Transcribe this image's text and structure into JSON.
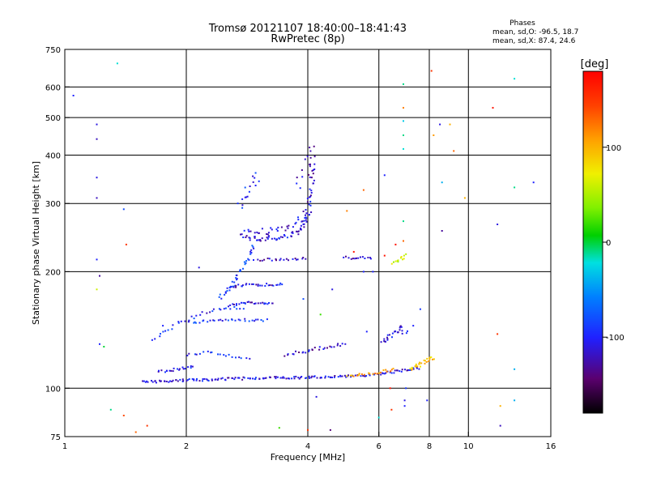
{
  "chart_data": {
    "type": "scatter",
    "title": "Tromsø 20121107 18:40:00–18:41:43",
    "subtitle": "RwPretec (8p)",
    "xlabel": "Frequency [MHz]",
    "ylabel": "Stationary phase Virtual Height [km]",
    "x_scale": "log",
    "y_scale": "log",
    "xlim": [
      1,
      16
    ],
    "ylim": [
      75,
      750
    ],
    "x_ticks": [
      1,
      2,
      4,
      6,
      8,
      10,
      16
    ],
    "x_ticklabels": [
      "1",
      "2",
      "4",
      "6",
      "8",
      "10",
      "16"
    ],
    "y_ticks": [
      75,
      100,
      200,
      300,
      400,
      500,
      600,
      750
    ],
    "y_ticklabels": [
      "75",
      "100",
      "200",
      "300",
      "400",
      "500",
      "600",
      "750"
    ],
    "gridlines_x": [
      2,
      4,
      6,
      8,
      10
    ],
    "gridlines_y": [
      100,
      200,
      300,
      400,
      500,
      600
    ],
    "grid": true,
    "stats": {
      "heading": "Phases",
      "line_o": "mean, sd,O: -96.5, 18.7",
      "line_x": "mean, sd,X:  87.4, 24.6"
    },
    "colorbar": {
      "label": "[deg]",
      "ticks": [
        "100",
        "0",
        "-100"
      ],
      "tick_values": [
        100,
        0,
        -100
      ],
      "range": [
        -180,
        180
      ]
    },
    "traces": [
      {
        "f": [
          1.55,
          1.7,
          1.9,
          2.1,
          2.4,
          2.8,
          3.2,
          3.6,
          4.0,
          4.5,
          5.0,
          5.5,
          6.0,
          6.4,
          6.8,
          7.2,
          7.6
        ],
        "h": [
          104,
          104,
          104.5,
          105,
          105.5,
          106,
          106.5,
          106.5,
          106.5,
          107,
          107.5,
          108,
          109,
          110,
          111,
          112,
          113
        ],
        "phase": -110,
        "n": 170,
        "jitter": 1.5
      },
      {
        "f": [
          5.0,
          5.5,
          6.0,
          6.3,
          6.6
        ],
        "h": [
          107.5,
          108.5,
          110,
          111,
          112
        ],
        "phase": 110,
        "n": 22,
        "jitter": 1.5
      },
      {
        "f": [
          7.2,
          7.5,
          7.8,
          8.2
        ],
        "h": [
          112,
          114,
          117,
          120
        ],
        "phase": 95,
        "n": 26,
        "jitter": 2.5
      },
      {
        "f": [
          1.7,
          1.9,
          2.1
        ],
        "h": [
          110,
          112,
          114
        ],
        "phase": -105,
        "n": 20,
        "jitter": 1.5
      },
      {
        "f": [
          2.0,
          2.3,
          2.6,
          2.9
        ],
        "h": [
          122,
          124,
          121,
          118
        ],
        "phase": -100,
        "n": 20,
        "jitter": 1.5
      },
      {
        "f": [
          3.5,
          4.0,
          4.5,
          5.0
        ],
        "h": [
          122,
          125,
          128,
          130
        ],
        "phase": -120,
        "n": 28,
        "jitter": 2
      },
      {
        "f": [
          6.1,
          6.4,
          6.8,
          7.0
        ],
        "h": [
          130,
          137,
          143,
          138
        ],
        "phase": -110,
        "n": 26,
        "jitter": 3
      },
      {
        "f": [
          1.65,
          1.8,
          2.0,
          2.2,
          2.5,
          2.8
        ],
        "h": [
          133,
          142,
          150,
          157,
          160,
          162
        ],
        "phase": -100,
        "n": 32,
        "jitter": 2
      },
      {
        "f": [
          2.0,
          2.3,
          2.6,
          2.9,
          3.2
        ],
        "h": [
          148,
          149,
          150,
          150,
          150
        ],
        "phase": -95,
        "n": 32,
        "jitter": 1.5
      },
      {
        "f": [
          2.55,
          2.7,
          2.85,
          3.0,
          3.3
        ],
        "h": [
          163,
          165,
          166,
          166,
          166
        ],
        "phase": -110,
        "n": 28,
        "jitter": 1.5
      },
      {
        "f": [
          2.4,
          2.6,
          2.8,
          2.95
        ],
        "h": [
          170,
          185,
          210,
          235
        ],
        "phase": -90,
        "n": 38,
        "jitter": 3
      },
      {
        "f": [
          2.55,
          2.8,
          3.0,
          3.2,
          3.5
        ],
        "h": [
          182,
          185,
          185,
          185,
          186
        ],
        "phase": -110,
        "n": 30,
        "jitter": 1.5
      },
      {
        "f": [
          2.95,
          3.2,
          3.5,
          3.8,
          4.0
        ],
        "h": [
          214,
          215,
          215,
          216,
          217
        ],
        "phase": -120,
        "n": 22,
        "jitter": 1.5
      },
      {
        "f": [
          2.75,
          2.9,
          3.1,
          3.4,
          3.7,
          3.9,
          4.05
        ],
        "h": [
          247,
          244,
          243,
          245,
          250,
          260,
          285
        ],
        "phase": -110,
        "n": 60,
        "jitter": 3
      },
      {
        "f": [
          2.8,
          3.0,
          3.3,
          3.6,
          3.9,
          4.05,
          4.1
        ],
        "h": [
          255,
          253,
          255,
          262,
          275,
          310,
          380
        ],
        "phase": -115,
        "n": 55,
        "jitter": 4
      },
      {
        "f": [
          2.75,
          2.85,
          3.0
        ],
        "h": [
          290,
          320,
          360
        ],
        "phase": -95,
        "n": 16,
        "jitter": 6
      },
      {
        "f": [
          3.8,
          3.95,
          4.05,
          4.1
        ],
        "h": [
          330,
          360,
          400,
          430
        ],
        "phase": -120,
        "n": 16,
        "jitter": 6
      },
      {
        "f": [
          4.9,
          5.1,
          5.4,
          5.8
        ],
        "h": [
          218,
          217,
          217,
          217
        ],
        "phase": -115,
        "n": 14,
        "jitter": 1.5
      },
      {
        "f": [
          6.5,
          6.8,
          7.0
        ],
        "h": [
          210,
          216,
          222
        ],
        "phase": 60,
        "n": 12,
        "jitter": 2
      }
    ],
    "scatter": [
      {
        "f": 1.05,
        "h": 570,
        "phase": -100
      },
      {
        "f": 1.2,
        "h": 480,
        "phase": -110
      },
      {
        "f": 1.2,
        "h": 440,
        "phase": -120
      },
      {
        "f": 1.2,
        "h": 350,
        "phase": -110
      },
      {
        "f": 1.2,
        "h": 310,
        "phase": -120
      },
      {
        "f": 1.2,
        "h": 215,
        "phase": -100
      },
      {
        "f": 1.22,
        "h": 195,
        "phase": -130
      },
      {
        "f": 1.2,
        "h": 180,
        "phase": 60
      },
      {
        "f": 1.22,
        "h": 130,
        "phase": -100
      },
      {
        "f": 1.25,
        "h": 128,
        "phase": 0
      },
      {
        "f": 1.35,
        "h": 690,
        "phase": -20
      },
      {
        "f": 1.4,
        "h": 290,
        "phase": -80
      },
      {
        "f": 1.42,
        "h": 235,
        "phase": 150
      },
      {
        "f": 1.3,
        "h": 88,
        "phase": -10
      },
      {
        "f": 1.4,
        "h": 85,
        "phase": 140
      },
      {
        "f": 1.5,
        "h": 77,
        "phase": 130
      },
      {
        "f": 1.6,
        "h": 80,
        "phase": 150
      },
      {
        "f": 2.15,
        "h": 205,
        "phase": -110
      },
      {
        "f": 3.4,
        "h": 79,
        "phase": 20
      },
      {
        "f": 4.0,
        "h": 78,
        "phase": 150
      },
      {
        "f": 4.55,
        "h": 78,
        "phase": -140
      },
      {
        "f": 4.2,
        "h": 95,
        "phase": -110
      },
      {
        "f": 5.2,
        "h": 225,
        "phase": 170
      },
      {
        "f": 5.5,
        "h": 200,
        "phase": -100
      },
      {
        "f": 5.8,
        "h": 200,
        "phase": -100
      },
      {
        "f": 6.0,
        "h": 84,
        "phase": -20
      },
      {
        "f": 6.2,
        "h": 355,
        "phase": -100
      },
      {
        "f": 6.2,
        "h": 220,
        "phase": 170
      },
      {
        "f": 6.45,
        "h": 88,
        "phase": 150
      },
      {
        "f": 6.4,
        "h": 100,
        "phase": 170
      },
      {
        "f": 6.9,
        "h": 530,
        "phase": 120
      },
      {
        "f": 6.9,
        "h": 610,
        "phase": -10
      },
      {
        "f": 6.9,
        "h": 490,
        "phase": -30
      },
      {
        "f": 6.9,
        "h": 450,
        "phase": -10
      },
      {
        "f": 6.9,
        "h": 415,
        "phase": -20
      },
      {
        "f": 6.9,
        "h": 270,
        "phase": -10
      },
      {
        "f": 6.9,
        "h": 240,
        "phase": 130
      },
      {
        "f": 6.6,
        "h": 235,
        "phase": 170
      },
      {
        "f": 6.95,
        "h": 93,
        "phase": -110
      },
      {
        "f": 6.95,
        "h": 90,
        "phase": -100
      },
      {
        "f": 7.0,
        "h": 100,
        "phase": -90
      },
      {
        "f": 7.3,
        "h": 145,
        "phase": -100
      },
      {
        "f": 7.6,
        "h": 160,
        "phase": -90
      },
      {
        "f": 7.9,
        "h": 93,
        "phase": -100
      },
      {
        "f": 8.1,
        "h": 660,
        "phase": 150
      },
      {
        "f": 8.2,
        "h": 450,
        "phase": 110
      },
      {
        "f": 8.5,
        "h": 480,
        "phase": -110
      },
      {
        "f": 8.6,
        "h": 340,
        "phase": -40
      },
      {
        "f": 8.6,
        "h": 255,
        "phase": -130
      },
      {
        "f": 9.0,
        "h": 480,
        "phase": 100
      },
      {
        "f": 9.2,
        "h": 410,
        "phase": 130
      },
      {
        "f": 9.8,
        "h": 310,
        "phase": 100
      },
      {
        "f": 11.5,
        "h": 530,
        "phase": 170
      },
      {
        "f": 11.8,
        "h": 265,
        "phase": -110
      },
      {
        "f": 11.8,
        "h": 138,
        "phase": 150
      },
      {
        "f": 12.0,
        "h": 90,
        "phase": 100
      },
      {
        "f": 12.0,
        "h": 80,
        "phase": -120
      },
      {
        "f": 13.0,
        "h": 630,
        "phase": -20
      },
      {
        "f": 13.0,
        "h": 330,
        "phase": -10
      },
      {
        "f": 13.0,
        "h": 112,
        "phase": -40
      },
      {
        "f": 13.0,
        "h": 93,
        "phase": -40
      },
      {
        "f": 14.5,
        "h": 340,
        "phase": -100
      },
      {
        "f": 1.75,
        "h": 145,
        "phase": -100
      },
      {
        "f": 3.9,
        "h": 170,
        "phase": -80
      },
      {
        "f": 4.3,
        "h": 155,
        "phase": 20
      },
      {
        "f": 4.6,
        "h": 180,
        "phase": -110
      },
      {
        "f": 5.6,
        "h": 140,
        "phase": -100
      },
      {
        "f": 5.0,
        "h": 287,
        "phase": 120
      },
      {
        "f": 5.5,
        "h": 325,
        "phase": 130
      }
    ]
  }
}
